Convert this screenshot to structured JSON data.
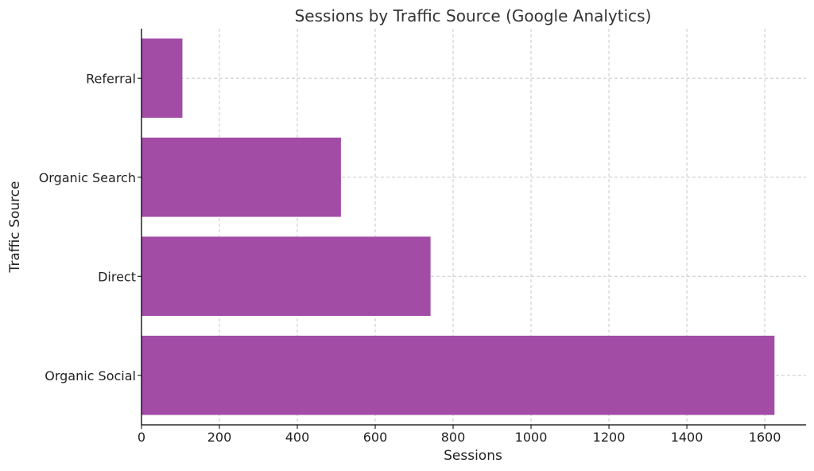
{
  "chart_data": {
    "type": "bar",
    "orientation": "horizontal",
    "title": "Sessions by Traffic Source (Google Analytics)",
    "xlabel": "Sessions",
    "ylabel": "Traffic Source",
    "categories": [
      "Organic Social",
      "Direct",
      "Organic Search",
      "Referral"
    ],
    "values": [
      1625,
      742,
      512,
      105
    ],
    "xlim": [
      0,
      1706
    ],
    "xticks": [
      0,
      200,
      400,
      600,
      800,
      1000,
      1200,
      1400,
      1600
    ],
    "bar_color": "#a24ca6",
    "grid": true
  }
}
